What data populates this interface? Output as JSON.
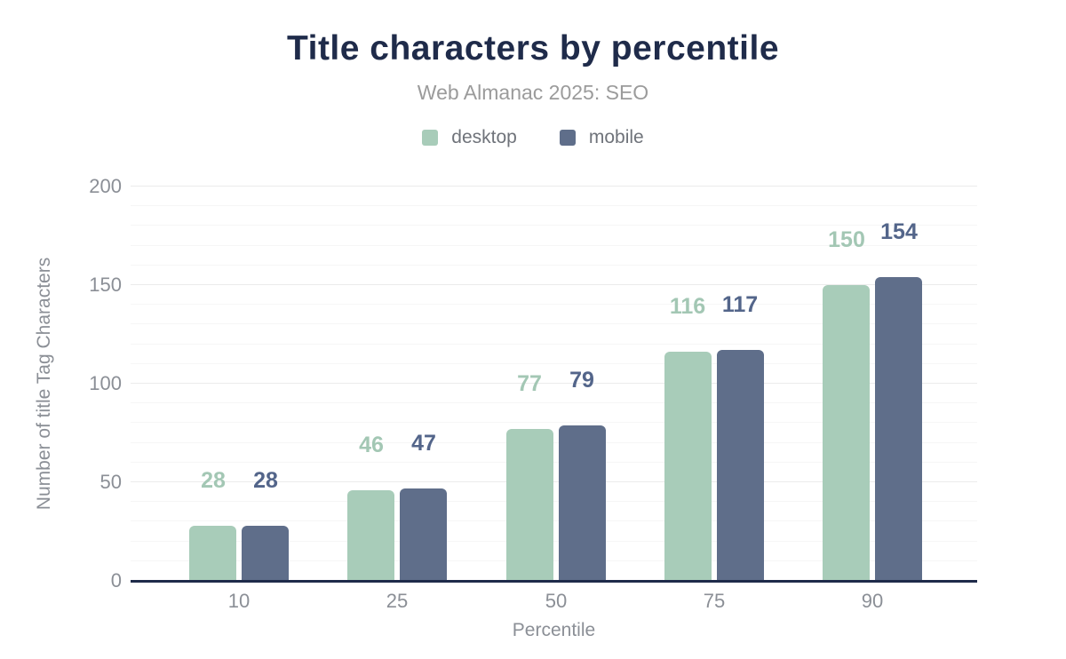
{
  "chart_data": {
    "type": "bar",
    "title": "Title characters by percentile",
    "subtitle": "Web Almanac 2025: SEO",
    "categories": [
      "10",
      "25",
      "50",
      "75",
      "90"
    ],
    "series": [
      {
        "name": "desktop",
        "color": "#a8ccb9",
        "label_color": "#a3c7b4",
        "values": [
          28,
          46,
          77,
          116,
          150
        ]
      },
      {
        "name": "mobile",
        "color": "#5f6e8a",
        "label_color": "#53658a",
        "values": [
          28,
          47,
          79,
          117,
          154
        ]
      }
    ],
    "xlabel": "Percentile",
    "ylabel": "Number of title Tag Characters",
    "ylim": [
      0,
      200
    ],
    "yticks": [
      0,
      50,
      100,
      150,
      200
    ],
    "minor_grid_step": 10,
    "major_grid_step": 50,
    "grid": "on",
    "legend_position": "top",
    "colors": {
      "title": "#1f2b4a",
      "subtitle": "#9b9b9b",
      "axis_text": "#8b8f96",
      "baseline": "#1f2b4a",
      "major_gridline": "#ebebeb",
      "minor_gridline": "#f6f6f6",
      "background": "#ffffff"
    }
  }
}
